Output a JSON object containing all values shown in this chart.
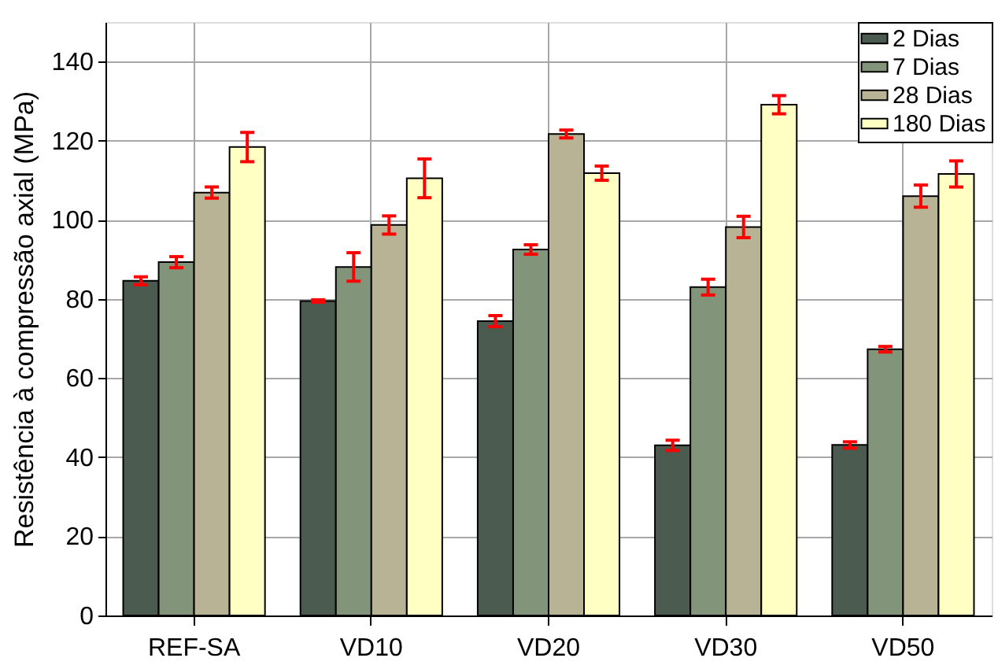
{
  "chart_data": {
    "type": "bar",
    "ylabel": "Resistência à compressão axial (MPa)",
    "categories": [
      "REF-SA",
      "VD10",
      "VD20",
      "VD30",
      "VD50"
    ],
    "ylim": [
      0,
      150
    ],
    "yticks": [
      0,
      20,
      40,
      60,
      80,
      100,
      120,
      140
    ],
    "grid": true,
    "legend": "top right",
    "series": [
      {
        "name": "2 Dias",
        "color": "#4b5b4f",
        "values": [
          84.6,
          79.5,
          74.4,
          43.0,
          43.1
        ],
        "errors": [
          1.0,
          0.3,
          1.4,
          1.3,
          0.8
        ]
      },
      {
        "name": "7 Dias",
        "color": "#82957a",
        "values": [
          89.3,
          88.1,
          92.5,
          83.0,
          67.3
        ],
        "errors": [
          1.4,
          3.6,
          1.2,
          2.0,
          0.7
        ]
      },
      {
        "name": "28 Dias",
        "color": "#b7b394",
        "values": [
          106.9,
          98.7,
          121.7,
          98.2,
          106.0
        ],
        "errors": [
          1.4,
          2.3,
          1.0,
          2.7,
          2.8
        ]
      },
      {
        "name": "180 Dias",
        "color": "#ffffc4",
        "values": [
          118.4,
          110.5,
          111.8,
          129.1,
          111.6
        ],
        "errors": [
          3.7,
          4.9,
          1.8,
          2.3,
          3.3
        ]
      }
    ]
  }
}
